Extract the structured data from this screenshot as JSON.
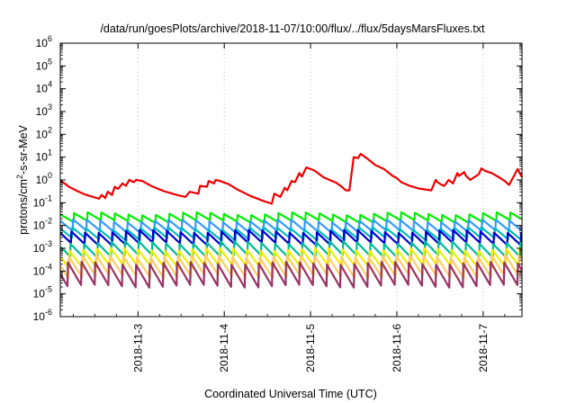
{
  "chart_data": {
    "type": "line",
    "title": "/data/run/goesPlots/archive/2018-11-07/10:00/flux/../flux/5daysMarsFluxes.txt",
    "xlabel": "Coordinated Universal Time (UTC)",
    "ylabel_parts": {
      "prefix": "protons/cm",
      "sup": "2",
      "suffix": "-s-sr-MeV"
    },
    "y_scale": "log",
    "ylim": [
      1e-06,
      1000000.0
    ],
    "xlim": [
      2.1,
      7.45
    ],
    "x_unit": "day of November 2018",
    "grid": true,
    "legend": "none",
    "x_ticks": [
      {
        "x": 3,
        "label": "2018-11-3"
      },
      {
        "x": 4,
        "label": "2018-11-4"
      },
      {
        "x": 5,
        "label": "2018-11-5"
      },
      {
        "x": 6,
        "label": "2018-11-6"
      },
      {
        "x": 7,
        "label": "2018-11-7"
      }
    ],
    "y_ticks": [
      {
        "v": 1e-06,
        "base": "10",
        "exp": "-6"
      },
      {
        "v": 1e-05,
        "base": "10",
        "exp": "-5"
      },
      {
        "v": 0.0001,
        "base": "10",
        "exp": "-4"
      },
      {
        "v": 0.001,
        "base": "10",
        "exp": "-3"
      },
      {
        "v": 0.01,
        "base": "10",
        "exp": "-2"
      },
      {
        "v": 0.1,
        "base": "10",
        "exp": "-1"
      },
      {
        "v": 1,
        "base": "10",
        "exp": "0"
      },
      {
        "v": 10,
        "base": "10",
        "exp": "1"
      },
      {
        "v": 100,
        "base": "10",
        "exp": "2"
      },
      {
        "v": 1000,
        "base": "10",
        "exp": "3"
      },
      {
        "v": 10000,
        "base": "10",
        "exp": "4"
      },
      {
        "v": 100000,
        "base": "10",
        "exp": "5"
      },
      {
        "v": 1000000,
        "base": "10",
        "exp": "6"
      }
    ],
    "series": [
      {
        "color": "#ee0000",
        "x": [
          2.1,
          2.15,
          2.2,
          2.3,
          2.4,
          2.5,
          2.55,
          2.58,
          2.62,
          2.65,
          2.7,
          2.73,
          2.77,
          2.82,
          2.86,
          2.9,
          2.95,
          2.98,
          3.05,
          3.15,
          3.3,
          3.45,
          3.55,
          3.6,
          3.7,
          3.72,
          3.8,
          3.82,
          3.88,
          3.9,
          3.95,
          4.05,
          4.15,
          4.3,
          4.45,
          4.55,
          4.58,
          4.65,
          4.7,
          4.73,
          4.78,
          4.82,
          4.87,
          4.9,
          4.95,
          5.0,
          5.05,
          5.15,
          5.25,
          5.3,
          5.36,
          5.41,
          5.45,
          5.5,
          5.55,
          5.58,
          5.65,
          5.75,
          5.85,
          5.95,
          6.0,
          6.05,
          6.15,
          6.25,
          6.4,
          6.45,
          6.47,
          6.52,
          6.55,
          6.6,
          6.65,
          6.7,
          6.72,
          6.78,
          6.8,
          6.85,
          6.95,
          6.98,
          7.02,
          7.1,
          7.2,
          7.25,
          7.3,
          7.4,
          7.45
        ],
        "y": [
          0.9,
          0.7,
          0.5,
          0.32,
          0.22,
          0.17,
          0.15,
          0.22,
          0.16,
          0.3,
          0.22,
          0.5,
          0.4,
          0.7,
          0.55,
          1.0,
          0.8,
          1.0,
          0.9,
          0.55,
          0.32,
          0.22,
          0.18,
          0.3,
          0.25,
          0.55,
          0.5,
          0.9,
          0.7,
          1.0,
          0.9,
          0.65,
          0.38,
          0.2,
          0.12,
          0.09,
          0.25,
          0.18,
          0.45,
          0.35,
          0.9,
          0.8,
          2.0,
          1.4,
          3.5,
          3.0,
          2.5,
          1.3,
          0.9,
          0.75,
          0.5,
          0.35,
          0.35,
          10.0,
          9.0,
          14.0,
          9.0,
          4.5,
          3.0,
          1.5,
          1.2,
          0.8,
          0.55,
          0.42,
          0.35,
          1.0,
          0.8,
          0.6,
          0.55,
          1.0,
          0.7,
          2.0,
          1.5,
          2.2,
          1.5,
          1.0,
          1.8,
          3.2,
          2.5,
          2.0,
          1.2,
          0.9,
          0.6,
          3.0,
          1.3
        ]
      },
      {
        "color": "#00ee00",
        "base": 0.033,
        "amp": 2.2,
        "period": 0.158,
        "phase": 0.0
      },
      {
        "color": "#3399ff",
        "base": 0.016,
        "amp": 3.0,
        "period": 0.158,
        "phase": 0.01
      },
      {
        "color": "#00bbbb",
        "base": 0.0075,
        "amp": 3.0,
        "period": 0.158,
        "phase": 0.02
      },
      {
        "color": "#0000cc",
        "base": 0.0055,
        "amp": 3.5,
        "period": 0.158,
        "phase": 0.03
      },
      {
        "color": "#00bb99",
        "base": 0.0018,
        "amp": 4.0,
        "period": 0.158,
        "phase": 0.04
      },
      {
        "color": "#eeee00",
        "base": 0.0009,
        "amp": 6.0,
        "period": 0.158,
        "phase": 0.05
      },
      {
        "color": "#ffcc66",
        "base": 0.00045,
        "amp": 8.0,
        "period": 0.158,
        "phase": 0.06
      },
      {
        "color": "#993366",
        "base": 0.00022,
        "amp": 10.0,
        "period": 0.158,
        "phase": 0.07
      }
    ]
  }
}
